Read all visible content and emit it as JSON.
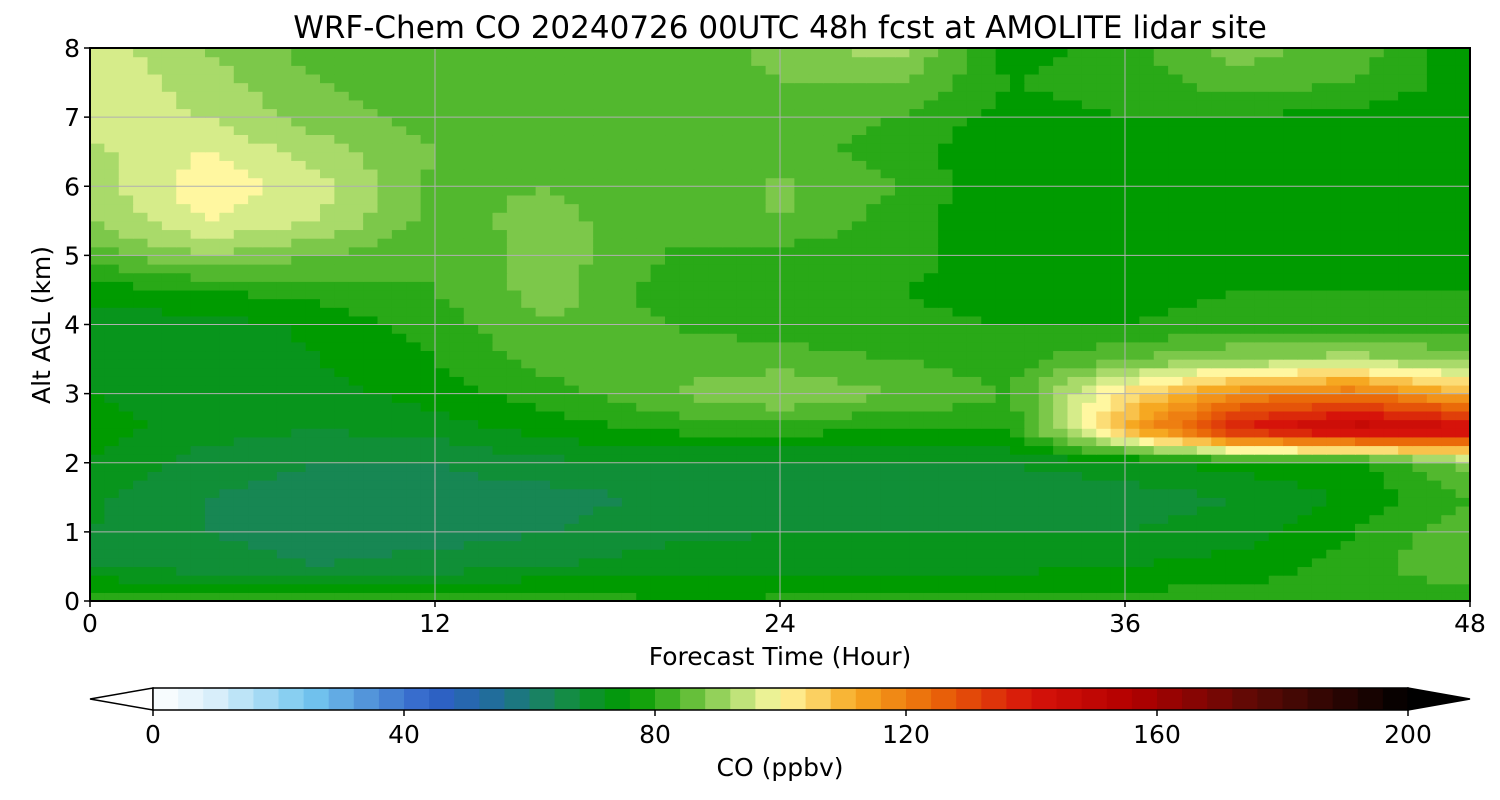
{
  "chart_data": {
    "type": "heatmap",
    "title": "WRF-Chem CO  20240726 00UTC 48h fcst at AMOLITE lidar site",
    "xlabel": "Forecast Time (Hour)",
    "ylabel": "Alt AGL (km)",
    "xlim": [
      0,
      48
    ],
    "ylim": [
      0,
      8
    ],
    "x_ticks": [
      "0",
      "12",
      "24",
      "36",
      "48"
    ],
    "y_ticks": [
      "0",
      "1",
      "2",
      "3",
      "4",
      "5",
      "6",
      "7",
      "8"
    ],
    "grid": true,
    "x": [
      0,
      4,
      8,
      12,
      16,
      20,
      24,
      28,
      32,
      36,
      40,
      44,
      48
    ],
    "y": [
      0,
      0.5,
      1,
      1.5,
      2,
      2.5,
      3,
      3.5,
      4,
      4.5,
      5,
      5.5,
      6,
      6.5,
      7,
      7.5,
      8
    ],
    "z": [
      [
        82,
        80,
        80,
        80,
        82,
        78,
        79,
        79,
        79,
        80,
        80,
        79,
        79
      ],
      [
        70,
        68,
        66,
        68,
        70,
        72,
        72,
        72,
        73,
        74,
        76,
        80,
        86
      ],
      [
        70,
        66,
        64,
        64,
        66,
        69,
        70,
        70,
        70,
        70,
        72,
        78,
        85
      ],
      [
        71,
        66,
        64,
        64,
        64,
        67,
        67,
        67,
        68,
        68,
        70,
        75,
        82
      ],
      [
        74,
        68,
        66,
        66,
        69,
        70,
        69,
        69,
        70,
        72,
        76,
        76,
        88
      ],
      [
        76,
        72,
        70,
        72,
        76,
        79,
        80,
        78,
        79,
        110,
        140,
        150,
        145
      ],
      [
        74,
        72,
        72,
        76,
        80,
        86,
        90,
        86,
        82,
        104,
        118,
        122,
        110
      ],
      [
        72,
        72,
        74,
        78,
        84,
        84,
        84,
        82,
        80,
        86,
        90,
        92,
        88
      ],
      [
        72,
        72,
        75,
        80,
        86,
        82,
        80,
        79,
        78,
        78,
        80,
        80,
        80
      ],
      [
        76,
        78,
        80,
        82,
        88,
        80,
        80,
        78,
        76,
        76,
        78,
        78,
        78
      ],
      [
        84,
        90,
        86,
        82,
        88,
        82,
        80,
        80,
        75,
        76,
        77,
        78,
        77
      ],
      [
        90,
        98,
        94,
        84,
        88,
        82,
        86,
        80,
        74,
        76,
        76,
        76,
        76
      ],
      [
        92,
        101,
        95,
        85,
        86,
        82,
        87,
        82,
        74,
        76,
        74,
        74,
        75
      ],
      [
        93,
        98,
        92,
        86,
        84,
        82,
        84,
        80,
        74,
        76,
        76,
        75,
        74
      ],
      [
        96,
        94,
        88,
        84,
        82,
        82,
        84,
        82,
        76,
        78,
        78,
        76,
        75
      ],
      [
        98,
        92,
        86,
        82,
        82,
        82,
        86,
        86,
        78,
        80,
        84,
        82,
        76
      ],
      [
        96,
        90,
        84,
        82,
        82,
        82,
        88,
        92,
        76,
        80,
        88,
        84,
        75
      ]
    ],
    "colorbar": {
      "label": "CO  (ppbv)",
      "range": [
        0,
        200
      ],
      "ticks": [
        "0",
        "40",
        "80",
        "120",
        "160",
        "200"
      ],
      "extend": "both",
      "colors": [
        [
          0,
          "#ffffff"
        ],
        [
          10,
          "#d8eefa"
        ],
        [
          25,
          "#74c7ef"
        ],
        [
          35,
          "#4f8fd8"
        ],
        [
          45,
          "#2e5fc8"
        ],
        [
          55,
          "#1f6f96"
        ],
        [
          65,
          "#168a4c"
        ],
        [
          76,
          "#009b00"
        ],
        [
          86,
          "#66bf3a"
        ],
        [
          96,
          "#d6ec8a"
        ],
        [
          100,
          "#fff7a0"
        ],
        [
          112,
          "#f6a821"
        ],
        [
          124,
          "#ea6a09"
        ],
        [
          140,
          "#d6130a"
        ],
        [
          156,
          "#b30000"
        ],
        [
          176,
          "#5a0a05"
        ],
        [
          200,
          "#000000"
        ]
      ]
    }
  }
}
